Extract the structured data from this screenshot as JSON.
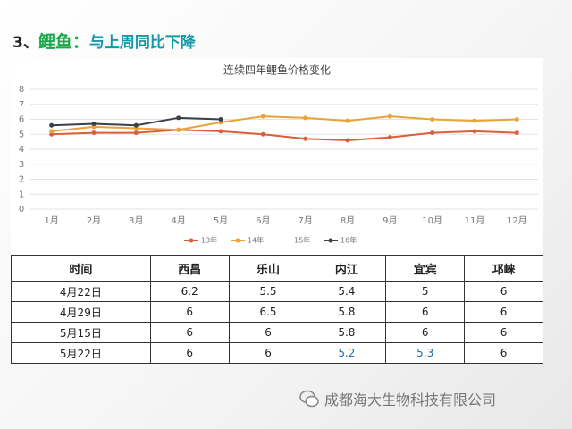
{
  "heading": {
    "number": "3、",
    "subject": "鲤鱼：",
    "text": "与上周同比下降"
  },
  "chart_data": {
    "type": "line",
    "title": "连续四年鲤鱼价格变化",
    "categories": [
      "1月",
      "2月",
      "3月",
      "4月",
      "5月",
      "6月",
      "7月",
      "8月",
      "9月",
      "10月",
      "11月",
      "12月"
    ],
    "series": [
      {
        "name": "13年",
        "color": "#d9603b",
        "values": [
          5.0,
          5.1,
          5.1,
          5.3,
          5.2,
          5.0,
          4.7,
          4.6,
          4.8,
          5.1,
          5.2,
          5.1
        ]
      },
      {
        "name": "14年",
        "color": "#e8a33a",
        "values": [
          5.2,
          5.5,
          5.4,
          5.3,
          5.8,
          6.2,
          6.1,
          5.9,
          6.2,
          6.0,
          5.9,
          6.0
        ]
      },
      {
        "name": "15年",
        "color": "#ffffff",
        "values": [
          null,
          null,
          null,
          null,
          null,
          null,
          null,
          null,
          null,
          null,
          null,
          null
        ]
      },
      {
        "name": "16年",
        "color": "#3a3f4a",
        "values": [
          5.6,
          5.7,
          5.6,
          6.1,
          6.0,
          null,
          null,
          null,
          null,
          null,
          null,
          null
        ]
      }
    ],
    "ylim": [
      0,
      8
    ],
    "yticks": [
      0,
      1,
      2,
      3,
      4,
      5,
      6,
      7,
      8
    ],
    "grid": true,
    "legend": "bottom"
  },
  "table": {
    "header": [
      "时间",
      "西昌",
      "乐山",
      "内江",
      "宜宾",
      "邛崃"
    ],
    "rows": [
      [
        "4月22日",
        "6.2",
        "5.5",
        "5.4",
        "5",
        "6"
      ],
      [
        "4月29日",
        "6",
        "6.5",
        "5.8",
        "6",
        "6"
      ],
      [
        "5月15日",
        "6",
        "6",
        "5.8",
        "6",
        "6"
      ],
      [
        "5月22日",
        "6",
        "6",
        "5.2",
        "5.3",
        "6"
      ]
    ]
  },
  "footer": {
    "company": "成都海大生物科技有限公司"
  }
}
